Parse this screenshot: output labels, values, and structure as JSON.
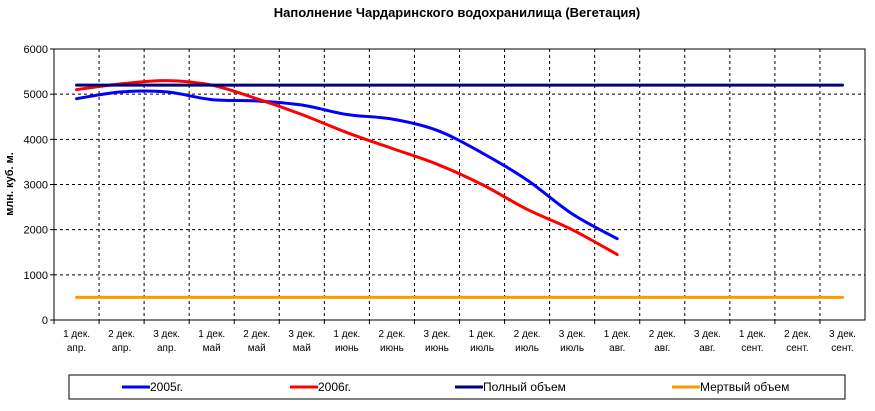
{
  "chart_data": {
    "type": "line",
    "title": "Наполнение Чардаринского водохранилища (Вегетация)",
    "xlabel": "",
    "ylabel": "млн. куб. м.",
    "ylim": [
      0,
      6000
    ],
    "yticks": [
      "0",
      "1000",
      "2000",
      "3000",
      "4000",
      "5000",
      "6000"
    ],
    "grid": true,
    "legend_position": "bottom",
    "categories": [
      [
        "1 дек.",
        "апр."
      ],
      [
        "2 дек.",
        "апр."
      ],
      [
        "3 дек.",
        "апр."
      ],
      [
        "1 дек.",
        "май"
      ],
      [
        "2 дек.",
        "май"
      ],
      [
        "3 дек.",
        "май"
      ],
      [
        "1 дек.",
        "июнь"
      ],
      [
        "2 дек.",
        "июнь"
      ],
      [
        "3 дек.",
        "июнь"
      ],
      [
        "1 дек.",
        "июль"
      ],
      [
        "2 дек.",
        "июль"
      ],
      [
        "3 дек.",
        "июль"
      ],
      [
        "1 дек.",
        "авг."
      ],
      [
        "2 дек.",
        "авг."
      ],
      [
        "3 дек.",
        "авг."
      ],
      [
        "1 дек.",
        "сент."
      ],
      [
        "2 дек.",
        "сент."
      ],
      [
        "3 дек.",
        "сент."
      ]
    ],
    "series": [
      {
        "name": "2005г.",
        "color": "#0000ff",
        "values": [
          4900,
          5050,
          5050,
          4880,
          4850,
          4760,
          4550,
          4450,
          4200,
          3700,
          3100,
          2350,
          1800,
          null,
          null,
          null,
          null,
          null
        ]
      },
      {
        "name": "2006г.",
        "color": "#ff0000",
        "values": [
          5100,
          5230,
          5300,
          5200,
          4900,
          4550,
          4150,
          3800,
          3450,
          3000,
          2450,
          2000,
          1450,
          null,
          null,
          null,
          null,
          null
        ]
      },
      {
        "name": "Полный объем",
        "color": "#000080",
        "values": [
          5200,
          5200,
          5200,
          5200,
          5200,
          5200,
          5200,
          5200,
          5200,
          5200,
          5200,
          5200,
          5200,
          5200,
          5200,
          5200,
          5200,
          5200
        ]
      },
      {
        "name": "Мертвый объем",
        "color": "#ff9900",
        "values": [
          500,
          500,
          500,
          500,
          500,
          500,
          500,
          500,
          500,
          500,
          500,
          500,
          500,
          500,
          500,
          500,
          500,
          500
        ]
      }
    ]
  }
}
